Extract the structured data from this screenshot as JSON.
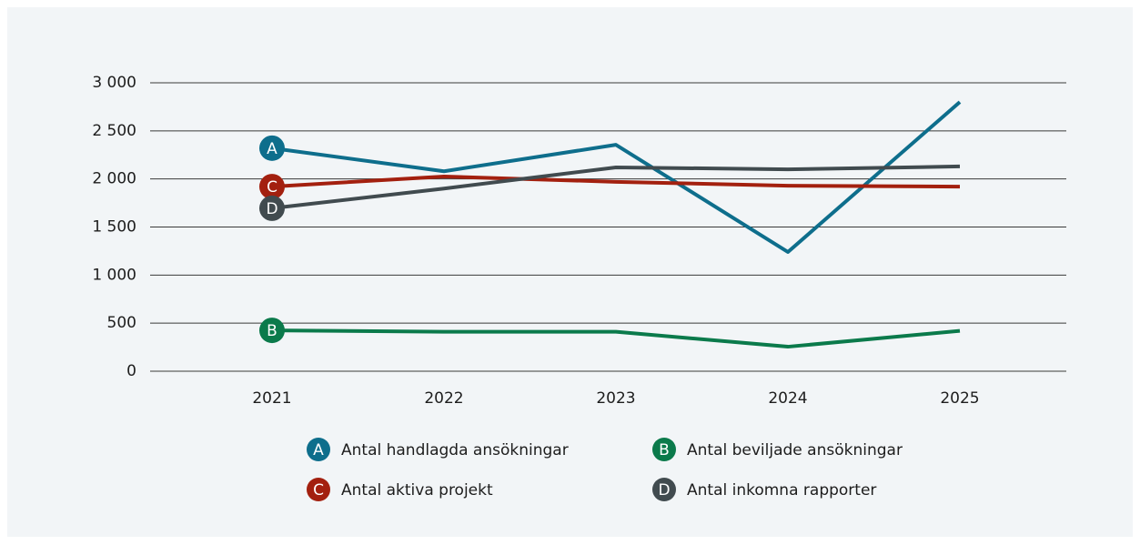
{
  "chart_data": {
    "type": "line",
    "categories": [
      "2021",
      "2022",
      "2023",
      "2024",
      "2025"
    ],
    "series": [
      {
        "name": "Antal handlagda ansökningar",
        "marker": "A",
        "color": "#0e6e8c",
        "values": [
          2320,
          2080,
          2355,
          1240,
          2800
        ]
      },
      {
        "name": "Antal beviljade ansökningar",
        "marker": "B",
        "color": "#0b7a4b",
        "values": [
          425,
          410,
          410,
          255,
          420
        ]
      },
      {
        "name": "Antal aktiva projekt",
        "marker": "C",
        "color": "#a3200f",
        "values": [
          1920,
          2025,
          1970,
          1930,
          1920
        ]
      },
      {
        "name": "Antal inkomna rapporter",
        "marker": "D",
        "color": "#414b4f",
        "values": [
          1695,
          1900,
          2120,
          2100,
          2130
        ]
      }
    ],
    "ylim": [
      0,
      3000
    ],
    "yticks": [
      0,
      500,
      {
        "value": 1000,
        "label": "1 000"
      },
      {
        "value": 1500,
        "label": "1 500"
      },
      {
        "value": 2000,
        "label": "2 000"
      },
      {
        "value": 2500,
        "label": "2 500"
      },
      {
        "value": 3000,
        "label": "3 000"
      }
    ],
    "grid": true
  }
}
